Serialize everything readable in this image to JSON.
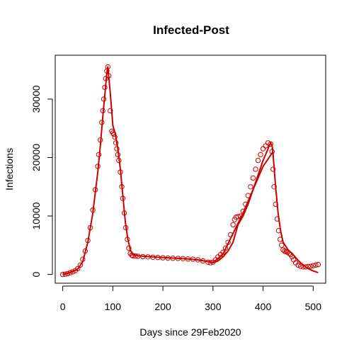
{
  "chart_data": {
    "type": "scatter",
    "title": "Infected-Post",
    "xlabel": "Days since 29Feb2020",
    "ylabel": "Infections",
    "xlim": [
      -15,
      525
    ],
    "ylim": [
      -1500,
      37500
    ],
    "xticks": [
      0,
      100,
      200,
      300,
      400,
      500
    ],
    "yticks": [
      0,
      10000,
      20000,
      30000
    ],
    "grid": false,
    "legend": "none",
    "color": "#CC0000",
    "series": [
      {
        "style": "points",
        "x": [
          0,
          5,
          10,
          15,
          20,
          25,
          30,
          35,
          40,
          45,
          50,
          55,
          60,
          65,
          70,
          72,
          75,
          78,
          80,
          82,
          84,
          86,
          88,
          90,
          92,
          95,
          98,
          100,
          102,
          104,
          106,
          108,
          110,
          112,
          115,
          118,
          120,
          123,
          126,
          129,
          132,
          135,
          138,
          140,
          145,
          150,
          160,
          170,
          180,
          190,
          200,
          210,
          220,
          230,
          240,
          250,
          260,
          270,
          280,
          290,
          295,
          300,
          305,
          310,
          315,
          320,
          325,
          330,
          335,
          340,
          343,
          346,
          350,
          355,
          360,
          365,
          370,
          375,
          380,
          385,
          390,
          395,
          400,
          405,
          410,
          415,
          418,
          420,
          422,
          425,
          428,
          431,
          434,
          437,
          440,
          443,
          446,
          449,
          452,
          455,
          458,
          461,
          465,
          470,
          475,
          480,
          485,
          490,
          495,
          500,
          505,
          510
        ],
        "y": [
          0,
          50,
          150,
          300,
          450,
          650,
          1000,
          1600,
          2600,
          4000,
          5800,
          8000,
          11000,
          14500,
          18500,
          20500,
          23000,
          26000,
          28000,
          30000,
          32000,
          33500,
          34800,
          35500,
          34000,
          28000,
          24500,
          24200,
          24000,
          23500,
          22500,
          21500,
          20500,
          19500,
          17500,
          15000,
          13000,
          10500,
          8000,
          6000,
          4500,
          3600,
          3300,
          3200,
          3150,
          3100,
          3050,
          3000,
          2950,
          2900,
          2850,
          2800,
          2780,
          2750,
          2700,
          2650,
          2600,
          2500,
          2300,
          2100,
          2000,
          2100,
          2500,
          3000,
          3400,
          3800,
          4500,
          5500,
          6800,
          8500,
          9400,
          9800,
          9900,
          10000,
          10800,
          12000,
          13500,
          15000,
          16500,
          18000,
          19500,
          20500,
          21500,
          22000,
          22500,
          22300,
          21000,
          18000,
          15000,
          12000,
          9500,
          7500,
          6000,
          5000,
          4200,
          4000,
          3900,
          3800,
          3600,
          3400,
          3000,
          2500,
          2000,
          1600,
          1400,
          1300,
          1300,
          1350,
          1400,
          1500,
          1600,
          1700
        ]
      },
      {
        "style": "line",
        "x": [
          0,
          10,
          20,
          30,
          40,
          50,
          60,
          70,
          75,
          80,
          85,
          88,
          90,
          95,
          100,
          105,
          110,
          115,
          120,
          125,
          130,
          135,
          140,
          150,
          170,
          190,
          210,
          230,
          250,
          270,
          290,
          300,
          310,
          320,
          330,
          340,
          350,
          360,
          370,
          380,
          390,
          400,
          410,
          415,
          418,
          420,
          425,
          430,
          435,
          440,
          450,
          460,
          470,
          480,
          490,
          500,
          510
        ],
        "y": [
          0,
          200,
          500,
          900,
          2200,
          5500,
          10500,
          17500,
          22000,
          27000,
          31500,
          34500,
          35500,
          31000,
          25500,
          24000,
          21500,
          18000,
          13500,
          9000,
          6000,
          4200,
          3400,
          3200,
          3050,
          2950,
          2850,
          2750,
          2650,
          2500,
          2200,
          2000,
          2300,
          3000,
          4000,
          5500,
          8500,
          10000,
          12000,
          14500,
          17000,
          19500,
          21500,
          22500,
          22000,
          20500,
          15000,
          10500,
          7500,
          5500,
          4200,
          3400,
          2400,
          1600,
          1000,
          600,
          300
        ]
      },
      {
        "style": "line",
        "x": [
          300,
          320,
          340,
          360,
          380,
          400,
          420
        ],
        "y": [
          2000,
          3500,
          7000,
          10500,
          14500,
          18500,
          21000
        ]
      }
    ]
  }
}
